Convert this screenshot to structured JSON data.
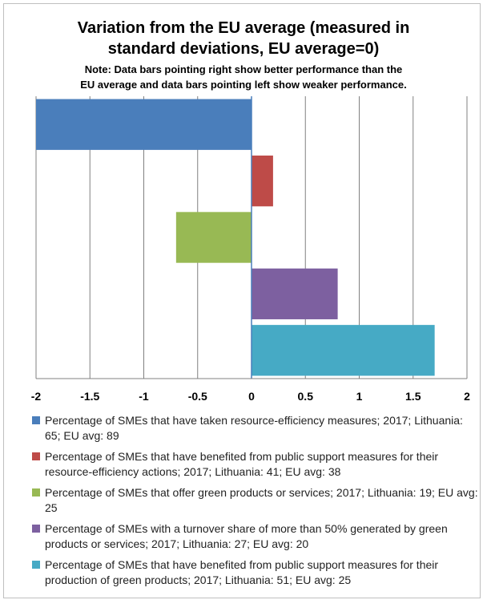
{
  "chart_data": {
    "type": "bar",
    "orientation": "horizontal",
    "title_lines": [
      "Variation from the EU average (measured in",
      "standard deviations, EU average=0)"
    ],
    "note_lines": [
      "Note: Data bars pointing right show better performance than the",
      "EU average and data bars pointing left show weaker performance."
    ],
    "xlim": [
      -2,
      2
    ],
    "xticks": [
      "-2",
      "-1.5",
      "-1",
      "-0.5",
      "0",
      "0.5",
      "1",
      "1.5",
      "2"
    ],
    "grid": true,
    "legend_position": "bottom",
    "series": [
      {
        "name": "Percentage of SMEs that have taken resource-efficiency measures; 2017; Lithuania: 65; EU avg: 89",
        "value": -2.0,
        "color": "#4a7ebb"
      },
      {
        "name": "Percentage of SMEs that have benefited from public support measures for their resource-efficiency actions; 2017; Lithuania: 41; EU avg: 38",
        "value": 0.2,
        "color": "#be4b48"
      },
      {
        "name": "Percentage of SMEs that offer green products or services; 2017; Lithuania: 19; EU avg: 25",
        "value": -0.7,
        "color": "#98b954"
      },
      {
        "name": "Percentage of SMEs with a turnover share of more than 50% generated by green products or services; 2017; Lithuania: 27; EU avg: 20",
        "value": 0.8,
        "color": "#7d60a0"
      },
      {
        "name": "Percentage of SMEs that have benefited from public support measures for their production of green products; 2017; Lithuania: 51; EU avg: 25",
        "value": 1.7,
        "color": "#46aac5"
      }
    ]
  }
}
